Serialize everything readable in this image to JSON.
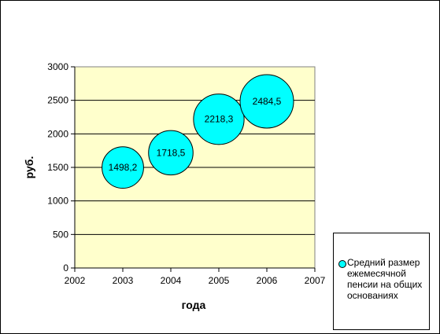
{
  "chart_data": {
    "type": "bubble",
    "x": [
      2003,
      2004,
      2005,
      2006
    ],
    "y": [
      1498.2,
      1718.5,
      2218.3,
      2484.5
    ],
    "data_labels": [
      "1498,2",
      "1718,5",
      "2218,3",
      "2484,5"
    ],
    "series": [
      {
        "name": "Средний размер ежемесячной пенсии на общих основаниях",
        "values": [
          1498.2,
          1718.5,
          2218.3,
          2484.5
        ]
      }
    ],
    "xlabel": "года",
    "ylabel": "руб.",
    "xlim": [
      2002,
      2007
    ],
    "ylim": [
      0,
      3000
    ],
    "x_ticks": [
      "2002",
      "2003",
      "2004",
      "2005",
      "2006",
      "2007"
    ],
    "y_ticks": [
      "0",
      "500",
      "1000",
      "1500",
      "2000",
      "2500",
      "3000"
    ],
    "grid": true,
    "legend_position": "bottom-right",
    "colors": {
      "bubble": "#00FFFF",
      "plot_background": "#FFFFCC",
      "frame": "#000000"
    }
  },
  "legend": {
    "label": "Средний размер ежемесячной пенсии на общих основаниях"
  }
}
